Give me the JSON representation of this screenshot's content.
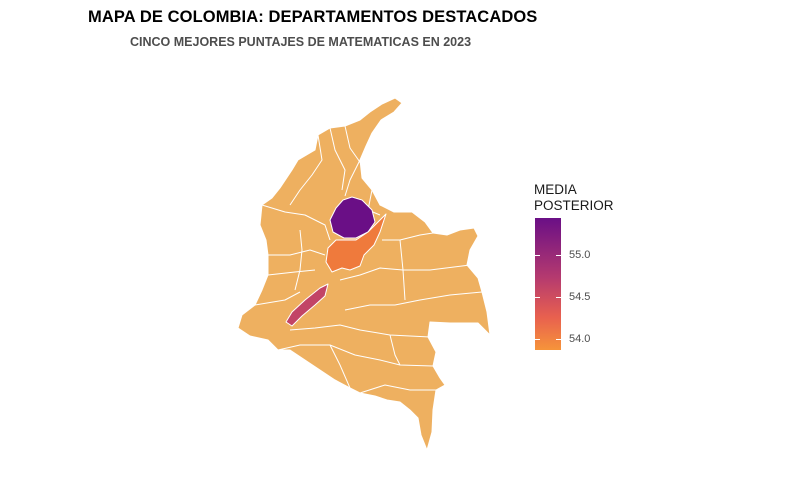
{
  "title": "MAPA DE COLOMBIA: DEPARTAMENTOS DESTACADOS",
  "subtitle": "CINCO MEJORES PUNTAJES DE MATEMATICAS EN 2023",
  "legend": {
    "title_line1": "MEDIA",
    "title_line2": "POSTERIOR",
    "ticks": [
      "55.0",
      "54.5",
      "54.0"
    ],
    "scale": {
      "min": 53.9,
      "max": 55.5
    },
    "colors": {
      "high": "#6a0f86",
      "mid": "#b53a6f",
      "low": "#f6943a"
    }
  },
  "map": {
    "base_color": "#eeb060",
    "border_color": "#ffffff",
    "highlighted_departments": [
      {
        "color": "#6a0f86",
        "level": "highest"
      },
      {
        "color": "#c24466",
        "level": "mid"
      },
      {
        "color": "#ef7a3c",
        "level": "lower"
      },
      {
        "color": "#f0803a",
        "level": "lower"
      }
    ]
  }
}
